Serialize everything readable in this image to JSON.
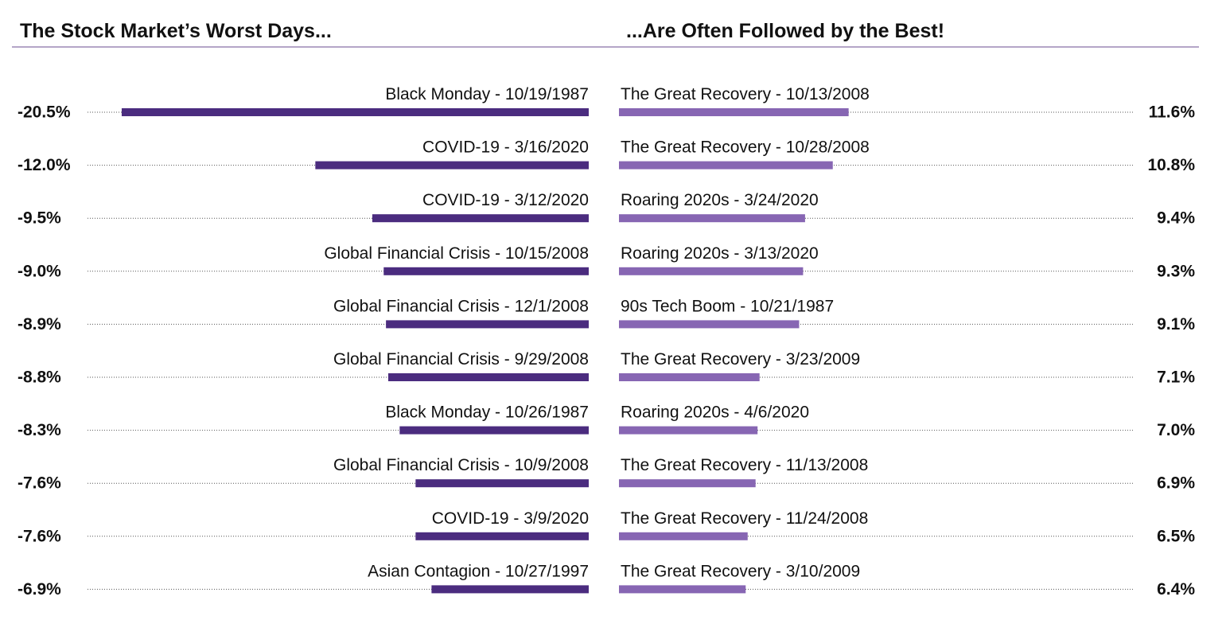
{
  "chart_data": [
    {
      "type": "bar",
      "title": "The Stock Market’s Worst Days...",
      "color": "#4b2c7f",
      "xlim": [
        -22,
        0
      ],
      "categories": [
        "Black Monday - 10/19/1987",
        "COVID-19 - 3/16/2020",
        "COVID-19 - 3/12/2020",
        "Global Financial Crisis - 10/15/2008",
        "Global Financial Crisis - 12/1/2008",
        "Global Financial Crisis - 9/29/2008",
        "Black Monday - 10/26/1987",
        "Global Financial Crisis - 10/9/2008",
        "COVID-19 - 3/9/2020",
        "Asian Contagion - 10/27/1997"
      ],
      "values": [
        -20.5,
        -12.0,
        -9.5,
        -9.0,
        -8.9,
        -8.8,
        -8.3,
        -7.6,
        -7.6,
        -6.9
      ],
      "value_labels": [
        "-20.5%",
        "-12.0%",
        "-9.5%",
        "-9.0%",
        "-8.9%",
        "-8.8%",
        "-8.3%",
        "-7.6%",
        "-7.6%",
        "-6.9%"
      ]
    },
    {
      "type": "bar",
      "title": "...Are Often Followed by the Best!",
      "color": "#8766b3",
      "xlim": [
        0,
        26
      ],
      "categories": [
        "The Great Recovery - 10/13/2008",
        "The Great Recovery - 10/28/2008",
        "Roaring 2020s - 3/24/2020",
        "Roaring 2020s - 3/13/2020",
        "90s Tech Boom - 10/21/1987",
        "The Great Recovery - 3/23/2009",
        "Roaring 2020s - 4/6/2020",
        "The Great Recovery - 11/13/2008",
        "The Great Recovery - 11/24/2008",
        "The Great Recovery - 3/10/2009"
      ],
      "values": [
        11.6,
        10.8,
        9.4,
        9.3,
        9.1,
        7.1,
        7.0,
        6.9,
        6.5,
        6.4
      ],
      "value_labels": [
        "11.6%",
        "10.8%",
        "9.4%",
        "9.3%",
        "9.1%",
        "7.1%",
        "7.0%",
        "6.9%",
        "6.5%",
        "6.4%"
      ]
    }
  ]
}
